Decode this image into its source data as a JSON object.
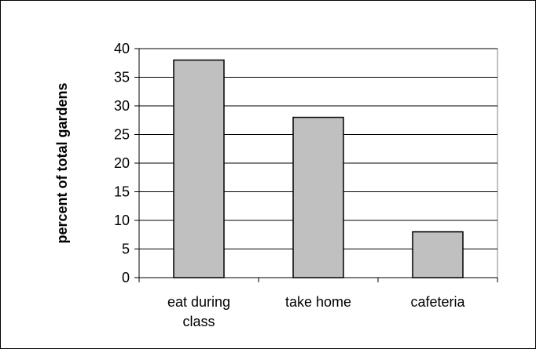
{
  "chart_data": {
    "type": "bar",
    "title": "",
    "xlabel": "",
    "ylabel": "percent of  total gardens",
    "categories": [
      [
        "eat during",
        "class"
      ],
      [
        "take home"
      ],
      [
        "cafeteria"
      ]
    ],
    "values": [
      38,
      28,
      8
    ],
    "ylim": [
      0,
      40
    ],
    "yticks": [
      "0",
      "5",
      "10",
      "15",
      "20",
      "25",
      "30",
      "35",
      "40"
    ],
    "grid": true,
    "legend": "none",
    "colors": {
      "bar_fill": "#c0c0c0",
      "bar_stroke": "#000000",
      "plot_background": "#ffffff",
      "gridline": "#000000"
    }
  }
}
